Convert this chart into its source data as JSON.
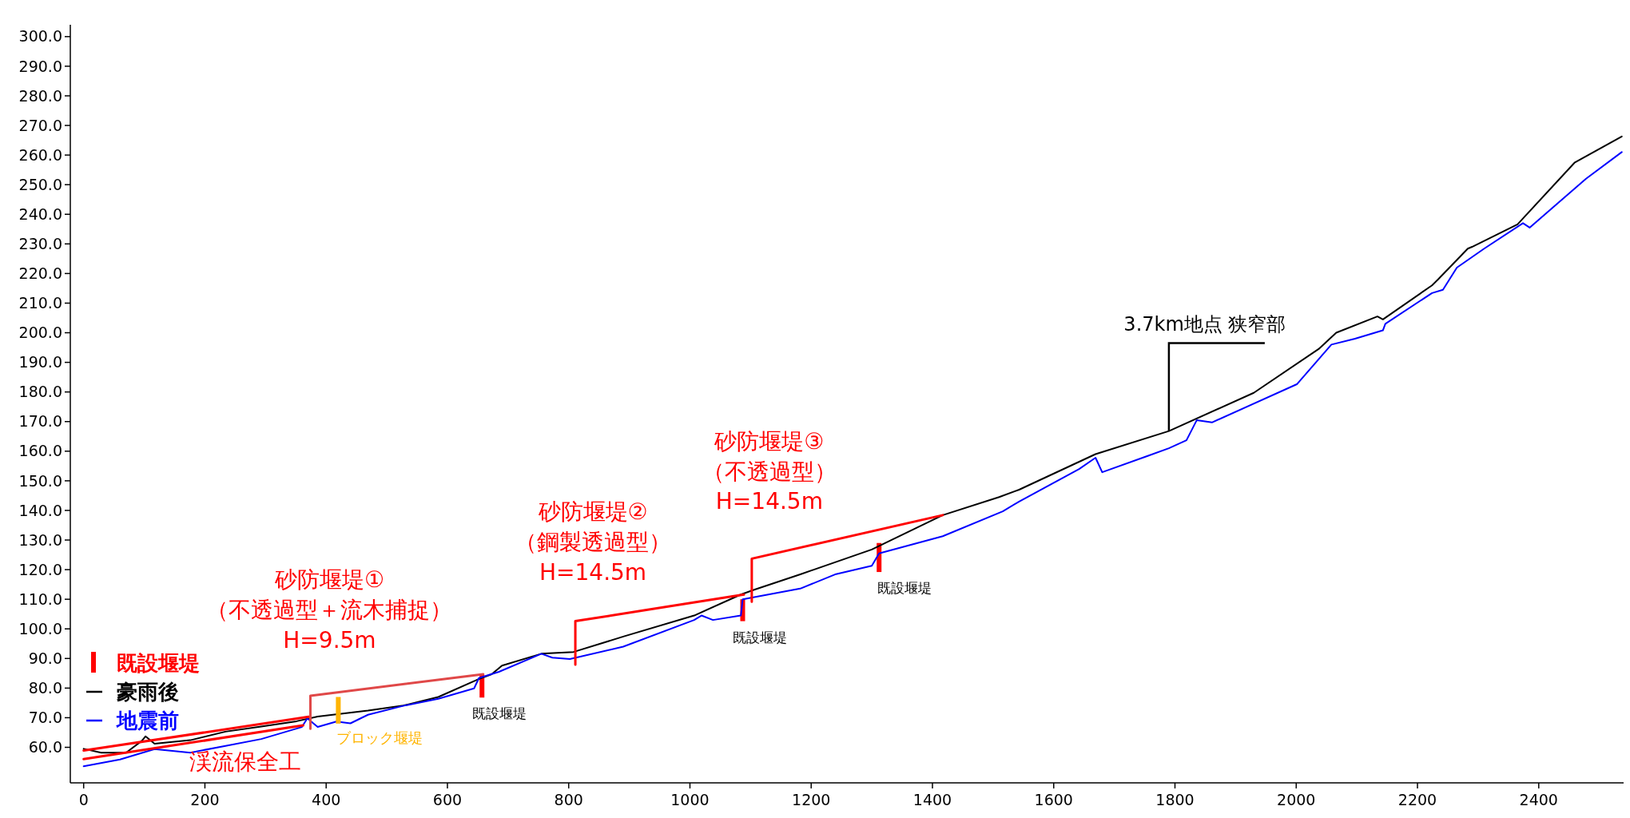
{
  "chart_data": {
    "type": "line",
    "xlim": [
      -22,
      2540
    ],
    "ylim": [
      48,
      304
    ],
    "xticks": [
      0,
      200,
      400,
      600,
      800,
      1000,
      1200,
      1400,
      1600,
      1800,
      2000,
      2200,
      2400
    ],
    "yticks": [
      {
        "value": 60,
        "label": "60.0"
      },
      {
        "value": 70,
        "label": "70.0"
      },
      {
        "value": 80,
        "label": "80.0"
      },
      {
        "value": 90,
        "label": "90.0"
      },
      {
        "value": 100,
        "label": "100.0"
      },
      {
        "value": 110,
        "label": "110.0"
      },
      {
        "value": 120,
        "label": "120.0"
      },
      {
        "value": 130,
        "label": "130.0"
      },
      {
        "value": 140,
        "label": "140.0"
      },
      {
        "value": 150,
        "label": "150.0"
      },
      {
        "value": 160,
        "label": "160.0"
      },
      {
        "value": 170,
        "label": "170.0"
      },
      {
        "value": 180,
        "label": "180.0"
      },
      {
        "value": 190,
        "label": "190.0"
      },
      {
        "value": 200,
        "label": "200.0"
      },
      {
        "value": 210,
        "label": "210.0"
      },
      {
        "value": 220,
        "label": "220.0"
      },
      {
        "value": 230,
        "label": "230.0"
      },
      {
        "value": 240,
        "label": "240.0"
      },
      {
        "value": 250,
        "label": "250.0"
      },
      {
        "value": 260,
        "label": "260.0"
      },
      {
        "value": 270,
        "label": "270.0"
      },
      {
        "value": 280,
        "label": "280.0"
      },
      {
        "value": 290,
        "label": "290.0"
      },
      {
        "value": 300,
        "label": "300.0"
      }
    ],
    "grid": false,
    "legend": "bottom left",
    "series": [
      {
        "name": "既設堰堤",
        "type": "bar",
        "color": "#ff0000",
        "x": [
          657,
          1087,
          1312
        ],
        "base": [
          76.8,
          102.6,
          119.2
        ],
        "values": [
          7.7,
          7.4,
          9.8
        ]
      },
      {
        "name": "豪雨後",
        "color": "#000000",
        "x": [
          0,
          29,
          70,
          96,
          102,
          117,
          176,
          234,
          293,
          351,
          386,
          469,
          527,
          585,
          650,
          673,
          690,
          755,
          808,
          890,
          1007,
          1084,
          1106,
          1182,
          1300,
          1417,
          1510,
          1543,
          1669,
          1790,
          1930,
          2037,
          2066,
          2134,
          2143,
          2224,
          2234,
          2283,
          2290,
          2365,
          2459,
          2537
        ],
        "values": [
          59.5,
          58.2,
          58.2,
          62.2,
          63.7,
          61.2,
          62.4,
          65.3,
          67,
          68.8,
          70.4,
          72.4,
          74.1,
          77,
          82.9,
          84.7,
          87.6,
          91.6,
          92.2,
          97.4,
          104.5,
          111.6,
          113.2,
          118.4,
          126.8,
          138.4,
          144.5,
          147,
          159,
          166.8,
          179.7,
          194.5,
          200,
          205.5,
          204.5,
          216,
          218,
          228.4,
          229,
          236.6,
          257.4,
          266.3
        ]
      },
      {
        "name": "地震前",
        "color": "#0000ff",
        "x": [
          0,
          60,
          117,
          176,
          234,
          293,
          351,
          360,
          369,
          386,
          417,
          440,
          469,
          527,
          585,
          644,
          652,
          685,
          755,
          773,
          802,
          890,
          1007,
          1019,
          1038,
          1084,
          1087,
          1182,
          1241,
          1300,
          1312,
          1417,
          1516,
          1543,
          1642,
          1669,
          1680,
          1755,
          1790,
          1819,
          1836,
          1861,
          2001,
          2058,
          2097,
          2143,
          2147,
          2224,
          2242,
          2265,
          2310,
          2374,
          2385,
          2478,
          2537
        ],
        "values": [
          53.6,
          55.9,
          59.4,
          58.2,
          60.5,
          62.8,
          66.3,
          66.9,
          69.8,
          66.9,
          68.7,
          68.1,
          71,
          74,
          76.4,
          79.9,
          83.4,
          85.5,
          91.6,
          90.3,
          89.8,
          94,
          103,
          104.5,
          103,
          104.5,
          110,
          113.6,
          118.5,
          121.3,
          125.5,
          131.3,
          139.7,
          143,
          154,
          157.8,
          152.9,
          158.4,
          161,
          163.7,
          170.5,
          169.7,
          182.6,
          196,
          198,
          200.8,
          203,
          213.4,
          214.5,
          222,
          228.4,
          237,
          235.5,
          252,
          261
        ]
      },
      {
        "type": "line",
        "color": "#ff0000",
        "x": [
          0,
          371
        ],
        "values": [
          58.9,
          70.3
        ]
      },
      {
        "type": "line",
        "color": "#ff0000",
        "x": [
          0,
          362
        ],
        "values": [
          56,
          67.4
        ]
      },
      {
        "type": "line",
        "color": "#e04848",
        "x": [
          374,
          374,
          659
        ],
        "values": [
          66.3,
          77.4,
          84.7
        ]
      },
      {
        "type": "line",
        "color": "#ff0000",
        "x": [
          811,
          811,
          1089
        ],
        "values": [
          87.9,
          102.6,
          111.6
        ]
      },
      {
        "type": "line",
        "color": "#ff0000",
        "x": [
          1102,
          1102,
          1417
        ],
        "values": [
          109.2,
          123.7,
          138.4
        ]
      },
      {
        "type": "bar",
        "color": "#ffb400",
        "x": [
          420
        ],
        "base": [
          68
        ],
        "values": [
          9
        ]
      }
    ],
    "annotations": [
      {
        "text": "砂防堰堤①\n（不透過型＋流木捕捉）\nH=9.5m",
        "x": 374,
        "y": 77.4
      },
      {
        "text": "砂防堰堤②\n（鋼製透過型）\nH=14.5m",
        "x": 811,
        "y": 102.6
      },
      {
        "text": "砂防堰堤③\n（不透過型）\nH=14.5m",
        "x": 1102,
        "y": 123.7
      },
      {
        "text": "既設堰堤",
        "x": 657,
        "y": 76.8
      },
      {
        "text": "既設堰堤",
        "x": 1087,
        "y": 102.6
      },
      {
        "text": "既設堰堤",
        "x": 1312,
        "y": 119.2
      },
      {
        "text": "ブロック堰堤",
        "x": 420,
        "y": 68
      },
      {
        "text": "渓流保全工",
        "x": 267,
        "y": 64.4
      },
      {
        "text": "3.7km地点 狭窄部",
        "x": 1790,
        "y": 166.8
      }
    ]
  }
}
